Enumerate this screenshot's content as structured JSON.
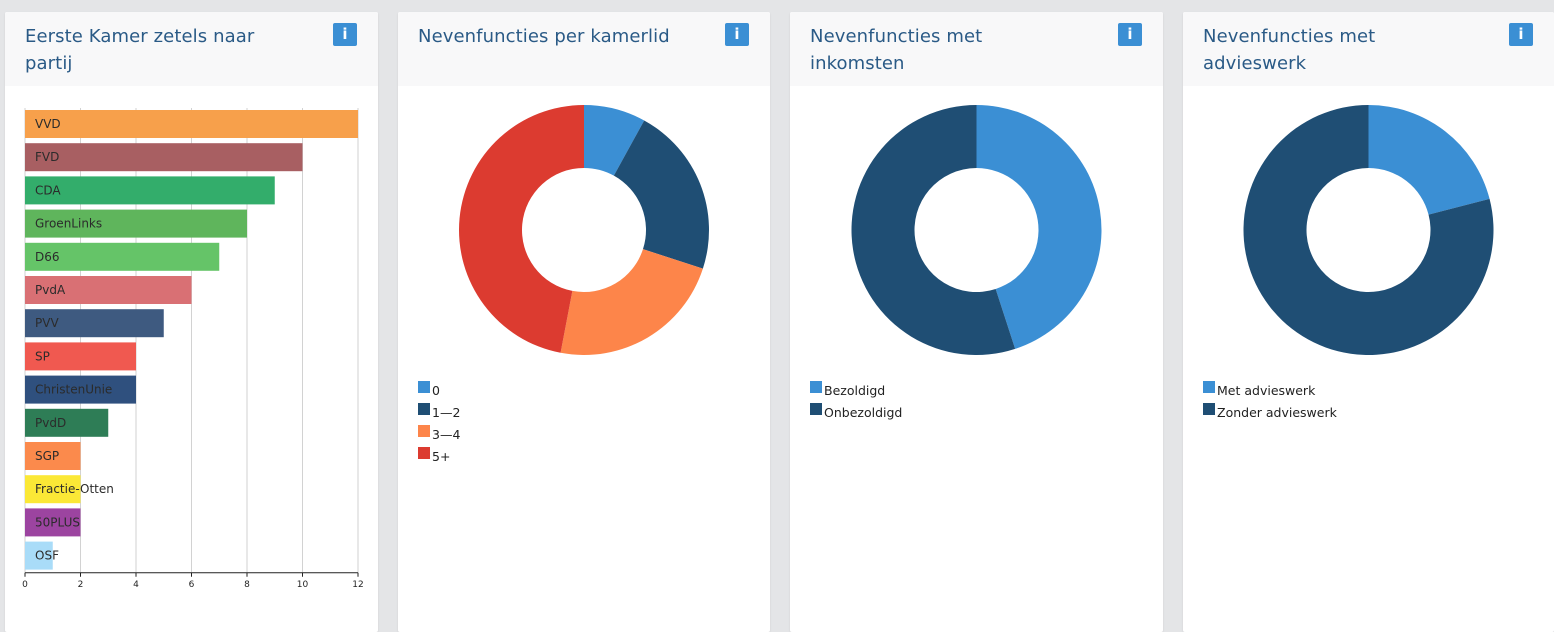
{
  "colors": {
    "title": "#2a5a86",
    "info_button": "#3b8fd4",
    "card_header": "#f8f8f9",
    "page_bg": "#e4e5e7"
  },
  "panels": [
    {
      "title": "Eerste Kamer zetels naar partij",
      "info_icon": "i"
    },
    {
      "title": "Nevenfuncties per kamerlid",
      "info_icon": "i"
    },
    {
      "title": "Nevenfuncties met inkomsten",
      "info_icon": "i"
    },
    {
      "title": "Nevenfuncties met advieswerk",
      "info_icon": "i"
    }
  ],
  "chart_data": [
    {
      "type": "bar",
      "orientation": "horizontal",
      "title": "Eerste Kamer zetels naar partij",
      "categories": [
        "VVD",
        "FVD",
        "CDA",
        "GroenLinks",
        "D66",
        "PvdA",
        "PVV",
        "SP",
        "ChristenUnie",
        "PvdD",
        "SGP",
        "Fractie-Otten",
        "50PLUS",
        "OSF"
      ],
      "values": [
        12,
        10,
        9,
        8,
        7,
        6,
        5,
        4,
        4,
        3,
        2,
        2,
        2,
        1
      ],
      "colors": [
        "#f7a04b",
        "#a85f62",
        "#33ad6b",
        "#5fb55c",
        "#65c468",
        "#d97074",
        "#3e5a80",
        "#f05950",
        "#2f507e",
        "#2e7d56",
        "#fb8a4c",
        "#fbe836",
        "#9c44a0",
        "#a9dcf8"
      ],
      "xlim": [
        0,
        12
      ],
      "xticks": [
        0,
        2,
        4,
        6,
        8,
        10,
        12
      ],
      "grid": true
    },
    {
      "type": "pie",
      "style": "donut",
      "title": "Nevenfuncties per kamerlid",
      "labels": [
        "0",
        "1—2",
        "3—4",
        "5+"
      ],
      "values": [
        8,
        22,
        23,
        47
      ],
      "colors": [
        "#3b8fd4",
        "#1f4e74",
        "#fd854a",
        "#dc3b30"
      ],
      "legend": "bottom-left"
    },
    {
      "type": "pie",
      "style": "donut",
      "title": "Nevenfuncties met inkomsten",
      "labels": [
        "Bezoldigd",
        "Onbezoldigd"
      ],
      "values": [
        45,
        55
      ],
      "colors": [
        "#3b8fd4",
        "#1f4e74"
      ],
      "legend": "bottom-left"
    },
    {
      "type": "pie",
      "style": "donut",
      "title": "Nevenfuncties met advieswerk",
      "labels": [
        "Met advieswerk",
        "Zonder advieswerk"
      ],
      "values": [
        21,
        79
      ],
      "colors": [
        "#3b8fd4",
        "#1f4e74"
      ],
      "legend": "bottom-left"
    }
  ]
}
